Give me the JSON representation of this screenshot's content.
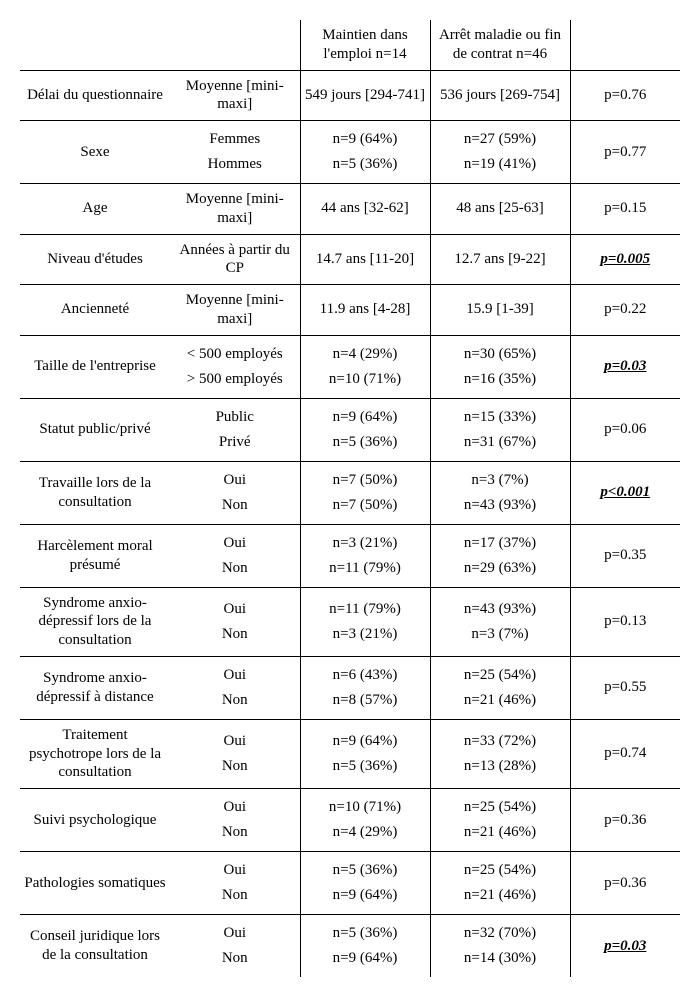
{
  "header": {
    "col2": "Maintien dans l'emploi n=14",
    "col3": "Arrêt maladie ou fin de contrat n=46"
  },
  "rows": [
    {
      "label": "Délai du questionnaire",
      "sub": [
        "Moyenne [mini-maxi]"
      ],
      "g1": [
        "549 jours [294-741]"
      ],
      "g2": [
        "536 jours [269-754]"
      ],
      "p": "p=0.76",
      "sig": false
    },
    {
      "label": "Sexe",
      "sub": [
        "Femmes",
        "Hommes"
      ],
      "g1": [
        "n=9 (64%)",
        "n=5 (36%)"
      ],
      "g2": [
        "n=27 (59%)",
        "n=19 (41%)"
      ],
      "p": "p=0.77",
      "sig": false
    },
    {
      "label": "Age",
      "sub": [
        "Moyenne [mini-maxi]"
      ],
      "g1": [
        "44 ans [32-62]"
      ],
      "g2": [
        "48 ans [25-63]"
      ],
      "p": "p=0.15",
      "sig": false
    },
    {
      "label": "Niveau d'études",
      "sub": [
        "Années à partir du CP"
      ],
      "g1": [
        "14.7 ans [11-20]"
      ],
      "g2": [
        "12.7 ans [9-22]"
      ],
      "p": "p=0.005",
      "sig": true
    },
    {
      "label": "Ancienneté",
      "sub": [
        "Moyenne [mini-maxi]"
      ],
      "g1": [
        "11.9 ans [4-28]"
      ],
      "g2": [
        "15.9 [1-39]"
      ],
      "p": "p=0.22",
      "sig": false
    },
    {
      "label": "Taille de l'entreprise",
      "sub": [
        "< 500 employés",
        "> 500 employés"
      ],
      "g1": [
        "n=4 (29%)",
        "n=10 (71%)"
      ],
      "g2": [
        "n=30 (65%)",
        "n=16 (35%)"
      ],
      "p": "p=0.03",
      "sig": true
    },
    {
      "label": "Statut public/privé",
      "sub": [
        "Public",
        "Privé"
      ],
      "g1": [
        "n=9 (64%)",
        "n=5 (36%)"
      ],
      "g2": [
        "n=15 (33%)",
        "n=31 (67%)"
      ],
      "p": "p=0.06",
      "sig": false
    },
    {
      "label": "Travaille lors de la consultation",
      "sub": [
        "Oui",
        "Non"
      ],
      "g1": [
        "n=7 (50%)",
        "n=7 (50%)"
      ],
      "g2": [
        "n=3 (7%)",
        "n=43 (93%)"
      ],
      "p": "p<0.001",
      "sig": true
    },
    {
      "label": "Harcèlement moral présumé",
      "sub": [
        "Oui",
        "Non"
      ],
      "g1": [
        "n=3 (21%)",
        "n=11 (79%)"
      ],
      "g2": [
        "n=17 (37%)",
        "n=29 (63%)"
      ],
      "p": "p=0.35",
      "sig": false
    },
    {
      "label": "Syndrome anxio-dépressif lors de la consultation",
      "sub": [
        "Oui",
        "Non"
      ],
      "g1": [
        "n=11 (79%)",
        "n=3 (21%)"
      ],
      "g2": [
        "n=43 (93%)",
        "n=3 (7%)"
      ],
      "p": "p=0.13",
      "sig": false
    },
    {
      "label": "Syndrome anxio-dépressif à distance",
      "sub": [
        "Oui",
        "Non"
      ],
      "g1": [
        "n=6 (43%)",
        "n=8 (57%)"
      ],
      "g2": [
        "n=25 (54%)",
        "n=21 (46%)"
      ],
      "p": "p=0.55",
      "sig": false
    },
    {
      "label": "Traitement psychotrope lors de la consultation",
      "sub": [
        "Oui",
        "Non"
      ],
      "g1": [
        "n=9 (64%)",
        "n=5 (36%)"
      ],
      "g2": [
        "n=33 (72%)",
        "n=13 (28%)"
      ],
      "p": "p=0.74",
      "sig": false
    },
    {
      "label": "Suivi psychologique",
      "sub": [
        "Oui",
        "Non"
      ],
      "g1": [
        "n=10 (71%)",
        "n=4 (29%)"
      ],
      "g2": [
        "n=25 (54%)",
        "n=21 (46%)"
      ],
      "p": "p=0.36",
      "sig": false
    },
    {
      "label": "Pathologies somatiques",
      "sub": [
        "Oui",
        "Non"
      ],
      "g1": [
        "n=5 (36%)",
        "n=9 (64%)"
      ],
      "g2": [
        "n=25 (54%)",
        "n=21 (46%)"
      ],
      "p": "p=0.36",
      "sig": false
    },
    {
      "label": "Conseil juridique lors de la consultation",
      "sub": [
        "Oui",
        "Non"
      ],
      "g1": [
        "n=5 (36%)",
        "n=9 (64%)"
      ],
      "g2": [
        "n=32 (70%)",
        "n=14 (30%)"
      ],
      "p": "p=0.03",
      "sig": true
    }
  ]
}
